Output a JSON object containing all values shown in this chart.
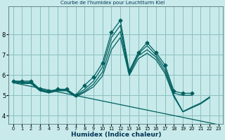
{
  "title": "Courbe de l'humidex pour Leuchtturm Kiel",
  "xlabel": "Humidex (Indice chaleur)",
  "background_color": "#c8eaea",
  "grid_color": "#8bbfbf",
  "line_color": "#006060",
  "x": [
    0,
    1,
    2,
    3,
    4,
    5,
    6,
    7,
    8,
    9,
    10,
    11,
    12,
    13,
    14,
    15,
    16,
    17,
    18,
    19,
    20,
    21,
    22,
    23
  ],
  "series1": [
    5.7,
    5.7,
    5.7,
    5.3,
    5.2,
    5.3,
    5.3,
    5.0,
    5.5,
    5.9,
    6.6,
    8.1,
    8.7,
    6.2,
    7.1,
    7.6,
    7.1,
    6.5,
    5.2,
    5.1,
    5.1,
    null,
    null,
    null
  ],
  "series2": [
    5.7,
    5.65,
    5.65,
    5.28,
    5.18,
    5.28,
    5.28,
    4.98,
    5.3,
    5.7,
    6.4,
    7.85,
    8.45,
    6.15,
    7.05,
    7.45,
    6.98,
    6.35,
    5.1,
    5.0,
    5.0,
    null,
    null,
    null
  ],
  "series3": [
    5.68,
    5.62,
    5.62,
    5.25,
    5.15,
    5.25,
    5.25,
    4.95,
    5.2,
    5.55,
    6.15,
    7.55,
    8.15,
    6.05,
    6.95,
    7.25,
    6.88,
    6.2,
    5.0,
    4.2,
    4.42,
    4.62,
    4.92,
    null
  ],
  "series4": [
    5.65,
    5.58,
    5.58,
    5.22,
    5.12,
    5.22,
    5.22,
    4.92,
    5.15,
    5.42,
    5.95,
    7.25,
    7.85,
    5.98,
    6.8,
    7.08,
    6.75,
    6.08,
    4.92,
    4.18,
    4.38,
    4.58,
    4.88,
    null
  ],
  "trend": [
    5.62,
    5.53,
    5.44,
    5.35,
    5.26,
    5.17,
    5.08,
    4.99,
    4.9,
    4.81,
    4.72,
    4.63,
    4.54,
    4.45,
    4.36,
    4.27,
    4.18,
    4.09,
    4.0,
    3.91,
    3.82,
    3.73,
    3.64,
    3.55
  ],
  "ylim": [
    3.6,
    9.4
  ],
  "yticks": [
    4,
    5,
    6,
    7,
    8
  ],
  "markersize": 2.5,
  "linewidth": 0.9
}
